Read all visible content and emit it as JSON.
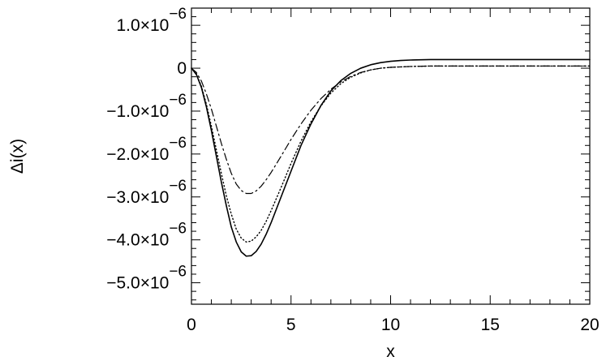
{
  "chart_data": {
    "type": "line",
    "xlabel": "x",
    "ylabel": "Δi(x)",
    "xlim": [
      0,
      20
    ],
    "ylim": [
      -5.5e-06,
      1.4e-06
    ],
    "x_ticks": [
      {
        "value": 0,
        "label": "0"
      },
      {
        "value": 5,
        "label": "5"
      },
      {
        "value": 10,
        "label": "10"
      },
      {
        "value": 15,
        "label": "15"
      },
      {
        "value": 20,
        "label": "20"
      }
    ],
    "y_ticks": [
      {
        "value": 1e-06,
        "mantissa": "1.0×10",
        "exponent": "−6"
      },
      {
        "value": 0,
        "mantissa": "0",
        "exponent": ""
      },
      {
        "value": -1e-06,
        "mantissa": "−1.0×10",
        "exponent": "−6"
      },
      {
        "value": -2e-06,
        "mantissa": "−2.0×10",
        "exponent": "−6"
      },
      {
        "value": -3e-06,
        "mantissa": "−3.0×10",
        "exponent": "−6"
      },
      {
        "value": -4e-06,
        "mantissa": "−4.0×10",
        "exponent": "−6"
      },
      {
        "value": -5e-06,
        "mantissa": "−5.0×10",
        "exponent": "−6"
      }
    ],
    "grid": false,
    "legend": "none",
    "series": [
      {
        "style": "solid",
        "x": [
          0,
          0.25,
          0.5,
          0.75,
          1,
          1.25,
          1.5,
          1.75,
          2,
          2.25,
          2.5,
          2.75,
          3,
          3.25,
          3.5,
          3.75,
          4,
          4.5,
          5,
          5.5,
          6,
          6.5,
          7,
          7.5,
          8,
          8.5,
          9,
          9.5,
          10,
          10.5,
          11,
          12,
          13,
          14,
          15,
          16,
          17,
          18,
          19,
          20
        ],
        "y": [
          0,
          -1.5e-07,
          -4.5e-07,
          -9e-07,
          -1.45e-06,
          -2.05e-06,
          -2.65e-06,
          -3.2e-06,
          -3.7e-06,
          -4.05e-06,
          -4.28e-06,
          -4.38e-06,
          -4.37e-06,
          -4.27e-06,
          -4.1e-06,
          -3.87e-06,
          -3.6e-06,
          -3e-06,
          -2.4e-06,
          -1.8e-06,
          -1.3e-06,
          -8.7e-07,
          -5.3e-07,
          -2.9e-07,
          -1.2e-07,
          0.0,
          8e-08,
          1.3e-07,
          1.6e-07,
          1.8e-07,
          1.9e-07,
          2e-07,
          2e-07,
          2e-07,
          2e-07,
          2e-07,
          2e-07,
          2e-07,
          2e-07,
          2e-07
        ]
      },
      {
        "style": "dotted",
        "x": [
          0,
          0.25,
          0.5,
          0.75,
          1,
          1.25,
          1.5,
          1.75,
          2,
          2.25,
          2.5,
          2.75,
          3,
          3.25,
          3.5,
          3.75,
          4,
          4.5,
          5,
          5.5,
          6,
          6.5,
          7,
          7.5,
          8,
          8.5,
          9,
          9.5,
          10,
          10.5,
          11,
          12,
          13,
          14,
          15,
          16,
          17,
          18,
          19,
          20
        ],
        "y": [
          0,
          -1.4e-07,
          -4.2e-07,
          -8.4e-07,
          -1.35e-06,
          -1.9e-06,
          -2.45e-06,
          -2.97e-06,
          -3.4e-06,
          -3.75e-06,
          -3.96e-06,
          -4.05e-06,
          -4.03e-06,
          -3.93e-06,
          -3.78e-06,
          -3.57e-06,
          -3.32e-06,
          -2.78e-06,
          -2.22e-06,
          -1.7e-06,
          -1.25e-06,
          -8.8e-07,
          -5.8e-07,
          -3.6e-07,
          -2.1e-07,
          -1.1e-07,
          -4e-08,
          0.0,
          2e-08,
          3e-08,
          4e-08,
          5e-08,
          5e-08,
          5e-08,
          5e-08,
          5e-08,
          5e-08,
          5e-08,
          5e-08,
          5e-08
        ]
      },
      {
        "style": "dash-dot",
        "x": [
          0,
          0.25,
          0.5,
          0.75,
          1,
          1.25,
          1.5,
          1.75,
          2,
          2.25,
          2.5,
          2.75,
          3,
          3.25,
          3.5,
          3.75,
          4,
          4.5,
          5,
          5.5,
          6,
          6.5,
          7,
          7.5,
          8,
          8.5,
          9,
          9.5,
          10,
          10.5,
          11,
          12,
          13,
          14,
          15,
          16,
          17,
          18,
          19,
          20
        ],
        "y": [
          0,
          -1e-07,
          -3e-07,
          -6e-07,
          -9.5e-07,
          -1.35e-06,
          -1.75e-06,
          -2.12e-06,
          -2.45e-06,
          -2.7e-06,
          -2.85e-06,
          -2.92e-06,
          -2.92e-06,
          -2.86e-06,
          -2.75e-06,
          -2.6e-06,
          -2.43e-06,
          -2.05e-06,
          -1.66e-06,
          -1.3e-06,
          -9.8e-07,
          -7.1e-07,
          -4.9e-07,
          -3.2e-07,
          -1.9e-07,
          -1e-07,
          -4e-08,
          0.0,
          2e-08,
          3e-08,
          4e-08,
          5e-08,
          5e-08,
          5e-08,
          5e-08,
          5e-08,
          5e-08,
          5e-08,
          5e-08,
          5e-08
        ]
      }
    ]
  }
}
